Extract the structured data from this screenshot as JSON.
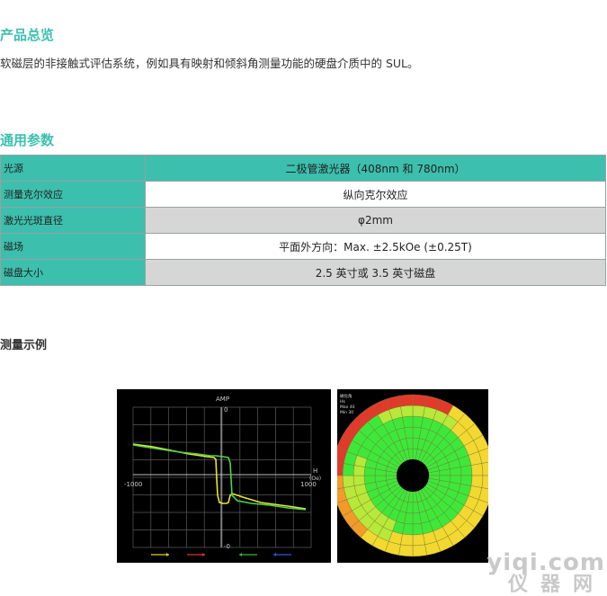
{
  "overview": {
    "title": "产品总览",
    "text": "软磁层的非接触式评估系统，例如具有映射和倾斜角测量功能的硬盘介质中的 SUL。"
  },
  "params": {
    "title": "通用参数",
    "rows": [
      {
        "key": "光源",
        "value": "二极管激光器（408nm 和 780nm）"
      },
      {
        "key": "测量克尔效应",
        "value": "纵向克尔效应"
      },
      {
        "key": "激光光斑直径",
        "value": "φ2mm"
      },
      {
        "key": "磁场",
        "value": "平面外方向：Max. ±2.5kOe (±0.25T)"
      },
      {
        "key": "磁盘大小",
        "value": "2.5 英寸或 3.5 英寸磁盘"
      }
    ]
  },
  "example": {
    "title": "测量示例"
  },
  "hysteresis_chart": {
    "title": "AMP",
    "y_top": "0",
    "y_bottom": "-0",
    "x_left": "-1000",
    "x_right": "1000",
    "x_label": "H",
    "x_unit": "(Oe)",
    "arrow_colors": [
      "#d6d62a",
      "#d43a2a",
      "#3cb83c",
      "#2a5ad4"
    ],
    "curve_colors": [
      "#e6e633",
      "#4ed44e"
    ]
  },
  "disk_map": {
    "legend": [
      "磁化角",
      "Hk",
      "Max 40",
      "Min 30"
    ],
    "colors": [
      "#e23a2a",
      "#f29a2a",
      "#f2d830",
      "#b8e83a",
      "#3ee83a"
    ]
  },
  "watermark": {
    "line1": "yiqi.com",
    "line2": "仪器网"
  }
}
